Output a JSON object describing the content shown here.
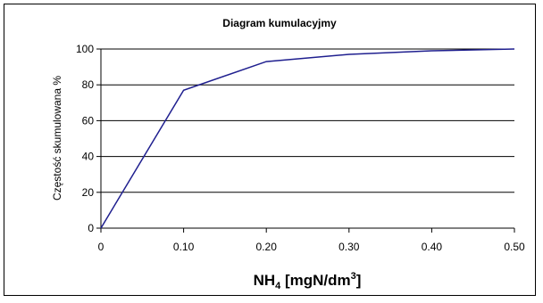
{
  "chart_data": {
    "type": "line",
    "title": "Diagram kumulacyjmy",
    "xlabel_main": "NH",
    "xlabel_sub": "4",
    "xlabel_unit_before": " [mgN/dm",
    "xlabel_sup": "3",
    "xlabel_unit_after": "]",
    "ylabel": "Częstość skumulowana %",
    "xlim": [
      0,
      0.5
    ],
    "ylim": [
      0,
      100
    ],
    "x_ticks": [
      "0",
      "0.10",
      "0.20",
      "0.30",
      "0.40",
      "0.50"
    ],
    "y_ticks": [
      "0",
      "20",
      "40",
      "60",
      "80",
      "100"
    ],
    "grid": true,
    "legend": "none",
    "line_color": "#1f1f8f",
    "series": [
      {
        "x": [
          0,
          0.1,
          0.2,
          0.3,
          0.4,
          0.5
        ],
        "y": [
          0,
          77,
          93,
          97,
          99,
          100
        ]
      }
    ]
  }
}
